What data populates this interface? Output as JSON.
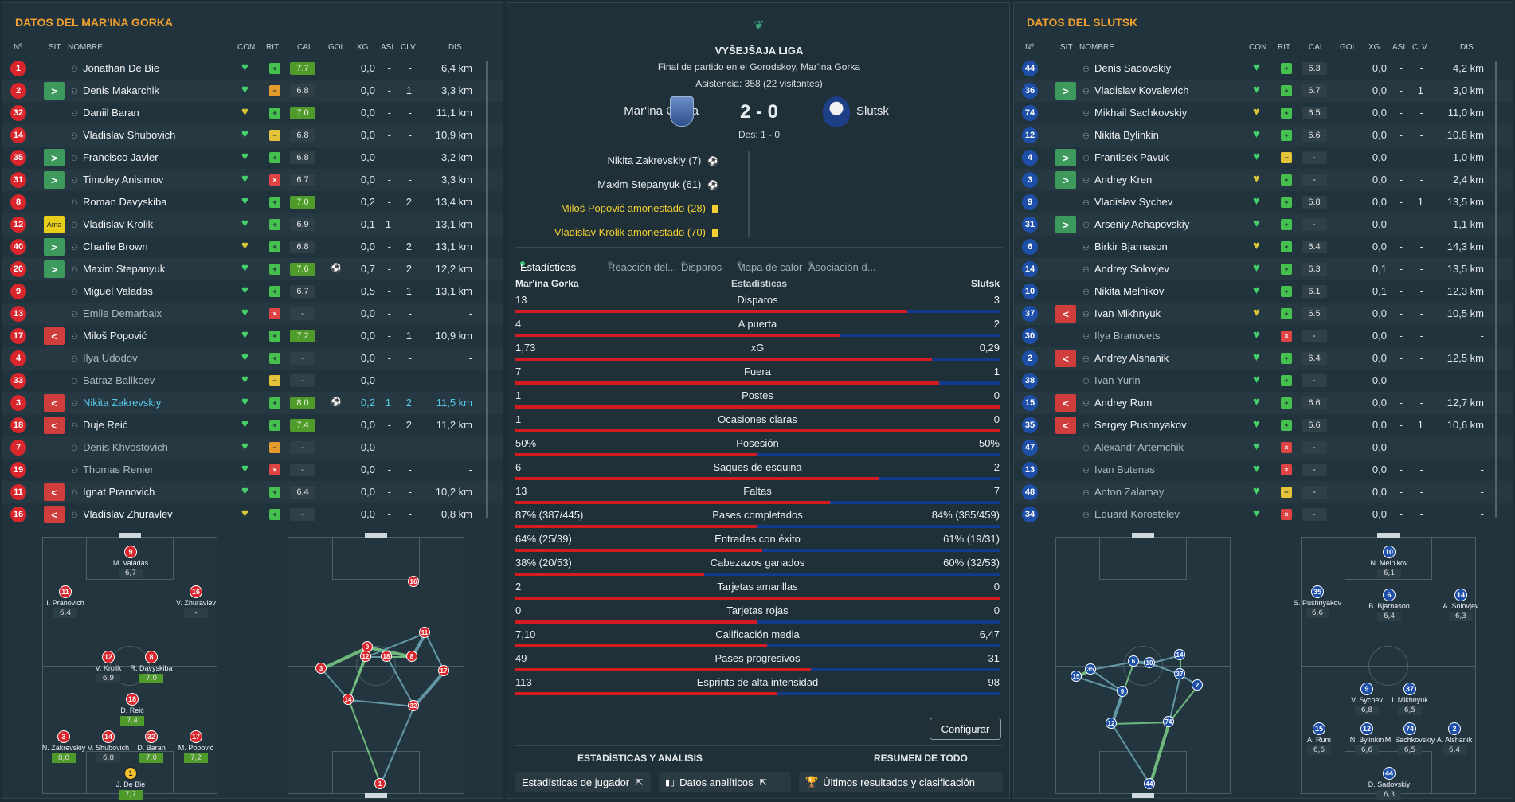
{
  "left": {
    "title": "DATOS DEL MAR'INA GORKA",
    "headers": [
      "Nº",
      "SIT",
      "NOMBRE",
      "CON",
      "RIT",
      "CAL",
      "GOL",
      "XG",
      "ASI",
      "CLV",
      "DIS"
    ],
    "players": [
      {
        "n": "1",
        "sit": "",
        "name": "Jonathan De Bie",
        "rit": "g",
        "cal": "7.7",
        "good": true,
        "gol": "",
        "xg": "0,0",
        "asi": "-",
        "clv": "-",
        "dis": "6,4 km",
        "style": ""
      },
      {
        "n": "2",
        "sit": "in",
        "name": "Denis Makarchik",
        "rit": "o",
        "cal": "6.8",
        "good": false,
        "gol": "",
        "xg": "0,0",
        "asi": "-",
        "clv": "1",
        "dis": "3,3 km",
        "style": ""
      },
      {
        "n": "32",
        "sit": "",
        "name": "Daniil Baran",
        "rit": "g",
        "cal": "7.0",
        "good": true,
        "gol": "",
        "xg": "0,0",
        "asi": "-",
        "clv": "-",
        "dis": "11,1 km",
        "style": ""
      },
      {
        "n": "14",
        "sit": "",
        "name": "Vladislav Shubovich",
        "rit": "y",
        "cal": "6.8",
        "good": false,
        "gol": "",
        "xg": "0,0",
        "asi": "-",
        "clv": "-",
        "dis": "10,9 km",
        "style": ""
      },
      {
        "n": "35",
        "sit": "in",
        "name": "Francisco Javier",
        "rit": "g",
        "cal": "6.8",
        "good": false,
        "gol": "",
        "xg": "0,0",
        "asi": "-",
        "clv": "-",
        "dis": "3,2 km",
        "style": ""
      },
      {
        "n": "31",
        "sit": "in",
        "name": "Timofey Anisimov",
        "rit": "r",
        "cal": "6.7",
        "good": false,
        "gol": "",
        "xg": "0,0",
        "asi": "-",
        "clv": "-",
        "dis": "3,3 km",
        "style": ""
      },
      {
        "n": "8",
        "sit": "",
        "name": "Roman Davyskiba",
        "rit": "g",
        "cal": "7.0",
        "good": true,
        "gol": "",
        "xg": "0,2",
        "asi": "-",
        "clv": "2",
        "dis": "13,4 km",
        "style": ""
      },
      {
        "n": "12",
        "sit": "ama",
        "name": "Vladislav Krolik",
        "rit": "g",
        "cal": "6.9",
        "good": false,
        "gol": "",
        "xg": "0,1",
        "asi": "1",
        "clv": "-",
        "dis": "13,1 km",
        "style": ""
      },
      {
        "n": "40",
        "sit": "in",
        "name": "Charlie Brown",
        "rit": "g",
        "cal": "6.8",
        "good": false,
        "gol": "",
        "xg": "0,0",
        "asi": "-",
        "clv": "2",
        "dis": "13,1 km",
        "style": ""
      },
      {
        "n": "20",
        "sit": "in",
        "name": "Maxim Stepanyuk",
        "rit": "g",
        "cal": "7.6",
        "good": true,
        "gol": "⚽",
        "xg": "0,7",
        "asi": "-",
        "clv": "2",
        "dis": "12,2 km",
        "style": ""
      },
      {
        "n": "9",
        "sit": "",
        "name": "Miguel Valadas",
        "rit": "g",
        "cal": "6.7",
        "good": false,
        "gol": "",
        "xg": "0,5",
        "asi": "-",
        "clv": "1",
        "dis": "13,1 km",
        "style": ""
      },
      {
        "n": "13",
        "sit": "",
        "name": "Emile Demarbaix",
        "rit": "r",
        "cal": "-",
        "good": false,
        "gol": "",
        "xg": "0,0",
        "asi": "-",
        "clv": "-",
        "dis": "-",
        "style": "dim"
      },
      {
        "n": "17",
        "sit": "out",
        "name": "Miloš Popović",
        "rit": "g",
        "cal": "7.2",
        "good": true,
        "gol": "",
        "xg": "0,0",
        "asi": "-",
        "clv": "1",
        "dis": "10,9 km",
        "style": ""
      },
      {
        "n": "4",
        "sit": "",
        "name": "Ilya Udodov",
        "rit": "g",
        "cal": "-",
        "good": false,
        "gol": "",
        "xg": "0,0",
        "asi": "-",
        "clv": "-",
        "dis": "-",
        "style": "dim"
      },
      {
        "n": "33",
        "sit": "",
        "name": "Batraz Balikoev",
        "rit": "y",
        "cal": "-",
        "good": false,
        "gol": "",
        "xg": "0,0",
        "asi": "-",
        "clv": "-",
        "dis": "-",
        "style": "dim"
      },
      {
        "n": "3",
        "sit": "out",
        "name": "Nikita Zakrevskiy",
        "rit": "g",
        "cal": "8.0",
        "good": true,
        "gol": "⚽",
        "xg": "0,2",
        "asi": "1",
        "clv": "2",
        "dis": "11,5 km",
        "style": "hl"
      },
      {
        "n": "18",
        "sit": "out",
        "name": "Duje Reić",
        "rit": "g",
        "cal": "7.4",
        "good": true,
        "gol": "",
        "xg": "0,0",
        "asi": "-",
        "clv": "2",
        "dis": "11,2 km",
        "style": ""
      },
      {
        "n": "7",
        "sit": "",
        "name": "Denis Khvostovich",
        "rit": "o",
        "cal": "-",
        "good": false,
        "gol": "",
        "xg": "0,0",
        "asi": "-",
        "clv": "-",
        "dis": "-",
        "style": "dim"
      },
      {
        "n": "19",
        "sit": "",
        "name": "Thomas Renier",
        "rit": "r",
        "cal": "-",
        "good": false,
        "gol": "",
        "xg": "0,0",
        "asi": "-",
        "clv": "-",
        "dis": "-",
        "style": "dim"
      },
      {
        "n": "11",
        "sit": "out",
        "name": "Ignat Pranovich",
        "rit": "g",
        "cal": "6.4",
        "good": false,
        "gol": "",
        "xg": "0,0",
        "asi": "-",
        "clv": "-",
        "dis": "10,2 km",
        "style": ""
      },
      {
        "n": "16",
        "sit": "out",
        "name": "Vladislav Zhuravlev",
        "rit": "g",
        "cal": "-",
        "good": false,
        "gol": "",
        "xg": "0,0",
        "asi": "-",
        "clv": "-",
        "dis": "0,8 km",
        "style": ""
      }
    ],
    "formation": [
      {
        "n": "9",
        "label": "M. Valadas",
        "rating": "6,7",
        "good": false
      },
      {
        "n": "11",
        "label": "I. Pranovich",
        "rating": "6,4",
        "good": false
      },
      {
        "n": "16",
        "label": "V. Zhuravlev",
        "rating": "-",
        "good": false
      },
      {
        "n": "12",
        "label": "V. Krolik",
        "rating": "6,9",
        "good": false
      },
      {
        "n": "8",
        "label": "R. Davyskiba",
        "rating": "7,0",
        "good": true
      },
      {
        "n": "18",
        "label": "D. Reić",
        "rating": "7,4",
        "good": true
      },
      {
        "n": "3",
        "label": "N. Zakrevskiy",
        "rating": "8,0",
        "good": true
      },
      {
        "n": "14",
        "label": "V. Shubovich",
        "rating": "6,8",
        "good": false
      },
      {
        "n": "32",
        "label": "D. Baran",
        "rating": "7,0",
        "good": true
      },
      {
        "n": "17",
        "label": "M. Popović",
        "rating": "7,2",
        "good": true
      },
      {
        "n": "1",
        "label": "J. De Bie",
        "rating": "7,7",
        "good": true
      }
    ],
    "passmap": [
      "9",
      "12",
      "18",
      "8",
      "11",
      "17",
      "3",
      "14",
      "32",
      "16",
      "1"
    ]
  },
  "right": {
    "title": "DATOS DEL SLUTSK",
    "headers": [
      "Nº",
      "SIT",
      "NOMBRE",
      "CON",
      "RIT",
      "CAL",
      "GOL",
      "XG",
      "ASI",
      "CLV",
      "DIS"
    ],
    "players": [
      {
        "n": "44",
        "sit": "",
        "name": "Denis Sadovskiy",
        "rit": "g",
        "cal": "6.3",
        "good": false,
        "gol": "",
        "xg": "0,0",
        "asi": "-",
        "clv": "-",
        "dis": "4,2 km",
        "style": ""
      },
      {
        "n": "36",
        "sit": "in",
        "name": "Vladislav Kovalevich",
        "rit": "g",
        "cal": "6.7",
        "good": false,
        "gol": "",
        "xg": "0,0",
        "asi": "-",
        "clv": "1",
        "dis": "3,0 km",
        "style": ""
      },
      {
        "n": "74",
        "sit": "",
        "name": "Mikhail Sachkovskiy",
        "rit": "g",
        "cal": "6.5",
        "good": false,
        "gol": "",
        "xg": "0,0",
        "asi": "-",
        "clv": "-",
        "dis": "11,0 km",
        "style": ""
      },
      {
        "n": "12",
        "sit": "",
        "name": "Nikita Bylinkin",
        "rit": "g",
        "cal": "6.6",
        "good": false,
        "gol": "",
        "xg": "0,0",
        "asi": "-",
        "clv": "-",
        "dis": "10,8 km",
        "style": ""
      },
      {
        "n": "4",
        "sit": "in",
        "name": "Frantisek Pavuk",
        "rit": "y",
        "cal": "-",
        "good": false,
        "gol": "",
        "xg": "0,0",
        "asi": "-",
        "clv": "-",
        "dis": "1,0 km",
        "style": ""
      },
      {
        "n": "3",
        "sit": "in",
        "name": "Andrey Kren",
        "rit": "g",
        "cal": "-",
        "good": false,
        "gol": "",
        "xg": "0,0",
        "asi": "-",
        "clv": "-",
        "dis": "2,4 km",
        "style": ""
      },
      {
        "n": "9",
        "sit": "",
        "name": "Vladislav Sychev",
        "rit": "g",
        "cal": "6.8",
        "good": false,
        "gol": "",
        "xg": "0,0",
        "asi": "-",
        "clv": "1",
        "dis": "13,5 km",
        "style": ""
      },
      {
        "n": "31",
        "sit": "in",
        "name": "Arseniy Achapovskiy",
        "rit": "g",
        "cal": "-",
        "good": false,
        "gol": "",
        "xg": "0,0",
        "asi": "-",
        "clv": "-",
        "dis": "1,1 km",
        "style": ""
      },
      {
        "n": "6",
        "sit": "",
        "name": "Birkir Bjarnason",
        "rit": "g",
        "cal": "6.4",
        "good": false,
        "gol": "",
        "xg": "0,0",
        "asi": "-",
        "clv": "-",
        "dis": "14,3 km",
        "style": ""
      },
      {
        "n": "14",
        "sit": "",
        "name": "Andrey Solovjev",
        "rit": "g",
        "cal": "6.3",
        "good": false,
        "gol": "",
        "xg": "0,1",
        "asi": "-",
        "clv": "-",
        "dis": "13,5 km",
        "style": ""
      },
      {
        "n": "10",
        "sit": "",
        "name": "Nikita Melnikov",
        "rit": "g",
        "cal": "6.1",
        "good": false,
        "gol": "",
        "xg": "0,1",
        "asi": "-",
        "clv": "-",
        "dis": "12,3 km",
        "style": ""
      },
      {
        "n": "37",
        "sit": "out",
        "name": "Ivan Mikhnyuk",
        "rit": "g",
        "cal": "6.5",
        "good": false,
        "gol": "",
        "xg": "0,0",
        "asi": "-",
        "clv": "-",
        "dis": "10,5 km",
        "style": ""
      },
      {
        "n": "30",
        "sit": "",
        "name": "Ilya Branovets",
        "rit": "r",
        "cal": "-",
        "good": false,
        "gol": "",
        "xg": "0,0",
        "asi": "-",
        "clv": "-",
        "dis": "-",
        "style": "dim"
      },
      {
        "n": "2",
        "sit": "out",
        "name": "Andrey Alshanik",
        "rit": "g",
        "cal": "6.4",
        "good": false,
        "gol": "",
        "xg": "0,0",
        "asi": "-",
        "clv": "-",
        "dis": "12,5 km",
        "style": ""
      },
      {
        "n": "38",
        "sit": "",
        "name": "Ivan Yurin",
        "rit": "g",
        "cal": "-",
        "good": false,
        "gol": "",
        "xg": "0,0",
        "asi": "-",
        "clv": "-",
        "dis": "-",
        "style": "dim"
      },
      {
        "n": "15",
        "sit": "out",
        "name": "Andrey Rum",
        "rit": "g",
        "cal": "6.6",
        "good": false,
        "gol": "",
        "xg": "0,0",
        "asi": "-",
        "clv": "-",
        "dis": "12,7 km",
        "style": ""
      },
      {
        "n": "35",
        "sit": "out",
        "name": "Sergey Pushnyakov",
        "rit": "g",
        "cal": "6.6",
        "good": false,
        "gol": "",
        "xg": "0,0",
        "asi": "-",
        "clv": "1",
        "dis": "10,6 km",
        "style": ""
      },
      {
        "n": "47",
        "sit": "",
        "name": "Alexandr Artemchik",
        "rit": "r",
        "cal": "-",
        "good": false,
        "gol": "",
        "xg": "0,0",
        "asi": "-",
        "clv": "-",
        "dis": "-",
        "style": "dim"
      },
      {
        "n": "13",
        "sit": "",
        "name": "Ivan Butenas",
        "rit": "r",
        "cal": "-",
        "good": false,
        "gol": "",
        "xg": "0,0",
        "asi": "-",
        "clv": "-",
        "dis": "-",
        "style": "dim"
      },
      {
        "n": "48",
        "sit": "",
        "name": "Anton Zalamay",
        "rit": "y",
        "cal": "-",
        "good": false,
        "gol": "",
        "xg": "0,0",
        "asi": "-",
        "clv": "-",
        "dis": "-",
        "style": "dim"
      },
      {
        "n": "34",
        "sit": "",
        "name": "Eduard Korostelev",
        "rit": "r",
        "cal": "-",
        "good": false,
        "gol": "",
        "xg": "0,0",
        "asi": "-",
        "clv": "-",
        "dis": "-",
        "style": "dim"
      }
    ],
    "formation": [
      {
        "n": "10",
        "label": "N. Melnikov",
        "rating": "6,1"
      },
      {
        "n": "35",
        "label": "S. Pushnyakov",
        "rating": "6,6"
      },
      {
        "n": "6",
        "label": "B. Bjarnason",
        "rating": "6,4"
      },
      {
        "n": "14",
        "label": "A. Solovjev",
        "rating": "6,3"
      },
      {
        "n": "9",
        "label": "V. Sychev",
        "rating": "6,8"
      },
      {
        "n": "37",
        "label": "I. Mikhnyuk",
        "rating": "6,5"
      },
      {
        "n": "15",
        "label": "A. Rum",
        "rating": "6,6"
      },
      {
        "n": "12",
        "label": "N. Bylinkin",
        "rating": "6,6"
      },
      {
        "n": "74",
        "label": "M. Sachkovskiy",
        "rating": "6,5"
      },
      {
        "n": "2",
        "label": "A. Alshanik",
        "rating": "6,4"
      },
      {
        "n": "44",
        "label": "D. Sadovskiy",
        "rating": "6,3"
      }
    ],
    "passmap": [
      "15",
      "35",
      "9",
      "6",
      "10",
      "14",
      "37",
      "2",
      "12",
      "74",
      "44"
    ]
  },
  "center": {
    "league": "VYŠEJŠAJA LIGA",
    "subtitle": "Final de partido en el Gorodskoy, Mar'ina Gorka",
    "attendance": "Asistencia: 358 (22 visitantes)",
    "home": "Mar'ina Gorka",
    "away": "Slutsk",
    "score": "2 - 0",
    "halftime": "Des: 1 - 0",
    "events": [
      {
        "text": "Nikita Zakrevskiy (7)",
        "type": "goal"
      },
      {
        "text": "Maxim Stepanyuk (61)",
        "type": "goal"
      },
      {
        "text": "Miloš Popović amonestado (28)",
        "type": "card"
      },
      {
        "text": "Vladislav Krolik amonestado (70)",
        "type": "card"
      }
    ],
    "tabs": [
      "Estadísticas",
      "Reacción del...",
      "Disparos",
      "Mapa de calor",
      "Asociación d..."
    ],
    "stats_head": {
      "left": "Mar'ina Gorka",
      "mid": "Estadísticas",
      "right": "Slutsk"
    },
    "stats": [
      {
        "label": "Disparos",
        "l": "13",
        "r": "3",
        "p": 0.81
      },
      {
        "label": "A puerta",
        "l": "4",
        "r": "2",
        "p": 0.67
      },
      {
        "label": "xG",
        "l": "1,73",
        "r": "0,29",
        "p": 0.86
      },
      {
        "label": "Fuera",
        "l": "7",
        "r": "1",
        "p": 0.875
      },
      {
        "label": "Postes",
        "l": "1",
        "r": "0",
        "p": 1.0
      },
      {
        "label": "Ocasiones claras",
        "l": "1",
        "r": "0",
        "p": 1.0
      },
      {
        "label": "Posesión",
        "l": "50%",
        "r": "50%",
        "p": 0.5
      },
      {
        "label": "Saques de esquina",
        "l": "6",
        "r": "2",
        "p": 0.75
      },
      {
        "label": "Faltas",
        "l": "13",
        "r": "7",
        "p": 0.65
      },
      {
        "label": "Pases completados",
        "l": "87% (387/445)",
        "r": "84% (385/459)",
        "p": 0.5
      },
      {
        "label": "Entradas con éxito",
        "l": "64% (25/39)",
        "r": "61% (19/31)",
        "p": 0.51
      },
      {
        "label": "Cabezazos ganados",
        "l": "38% (20/53)",
        "r": "60% (32/53)",
        "p": 0.39
      },
      {
        "label": "Tarjetas amarillas",
        "l": "2",
        "r": "0",
        "p": 1.0
      },
      {
        "label": "Tarjetas rojas",
        "l": "0",
        "r": "0",
        "p": 0.5
      },
      {
        "label": "Calificación media",
        "l": "7,10",
        "r": "6,47",
        "p": 0.52
      },
      {
        "label": "Pases progresivos",
        "l": "49",
        "r": "31",
        "p": 0.61
      },
      {
        "label": "Esprints de alta intensidad",
        "l": "113",
        "r": "98",
        "p": 0.54
      }
    ],
    "configure": "Configurar",
    "section_left": "ESTADÍSTICAS Y ANÁLISIS",
    "section_right": "RESUMEN DE TODO",
    "btn_player": "Estadísticas de jugador",
    "btn_analytics": "Datos analíticos",
    "btn_results": "Últimos resultados y clasificación",
    "colors": {
      "home": "#d51c22",
      "away": "#123a8a",
      "accent": "#f0a030"
    }
  }
}
